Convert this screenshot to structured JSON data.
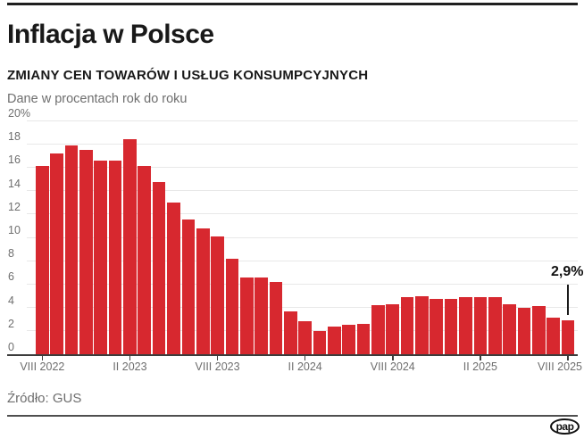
{
  "header": {
    "title": "Inflacja w Polsce",
    "subtitle": "ZMIANY CEN TOWARÓW I USŁUG KONSUMPCYJNYCH",
    "note": "Dane w procentach rok do roku"
  },
  "chart_data": {
    "type": "bar",
    "title": "Inflacja w Polsce",
    "subtitle": "ZMIANY CEN TOWARÓW I USŁUG KONSUMPCYJNYCH",
    "unit": "% rok do roku",
    "ylim": [
      0,
      20
    ],
    "grid": true,
    "bar_color": "#d7282f",
    "categories": [
      "VIII 2022",
      "IX 2022",
      "X 2022",
      "XI 2022",
      "XII 2022",
      "I 2023",
      "II 2023",
      "III 2023",
      "IV 2023",
      "V 2023",
      "VI 2023",
      "VII 2023",
      "VIII 2023",
      "IX 2023",
      "X 2023",
      "XI 2023",
      "XII 2023",
      "I 2024",
      "II 2024",
      "III 2024",
      "IV 2024",
      "V 2024",
      "VI 2024",
      "VII 2024",
      "VIII 2024",
      "IX 2024",
      "X 2024",
      "XI 2024",
      "XII 2024",
      "I 2025",
      "II 2025",
      "III 2025",
      "IV 2025",
      "V 2025",
      "VI 2025",
      "VII 2025",
      "VIII 2025"
    ],
    "values": [
      16.1,
      17.2,
      17.9,
      17.5,
      16.6,
      16.6,
      18.4,
      16.1,
      14.7,
      13.0,
      11.5,
      10.8,
      10.1,
      8.2,
      6.6,
      6.6,
      6.2,
      3.7,
      2.8,
      2.0,
      2.4,
      2.5,
      2.6,
      4.2,
      4.3,
      4.9,
      5.0,
      4.7,
      4.7,
      4.9,
      4.9,
      4.9,
      4.3,
      4.0,
      4.1,
      3.1,
      2.9
    ],
    "y_ticks": [
      0,
      2,
      4,
      6,
      8,
      10,
      12,
      14,
      16,
      18,
      20
    ],
    "y_top_tick_label": "20%",
    "x_ticks": [
      {
        "index": 0,
        "label": "VIII 2022"
      },
      {
        "index": 6,
        "label": "II 2023"
      },
      {
        "index": 12,
        "label": "VIII 2023"
      },
      {
        "index": 18,
        "label": "II 2024"
      },
      {
        "index": 24,
        "label": "VIII 2024"
      },
      {
        "index": 30,
        "label": "II 2025"
      },
      {
        "index": 36,
        "label": "VIII 2025"
      }
    ],
    "annotation": {
      "label": "2,9%",
      "index": 36
    }
  },
  "footer": {
    "source": "Źródło: GUS",
    "logo": "pap"
  }
}
